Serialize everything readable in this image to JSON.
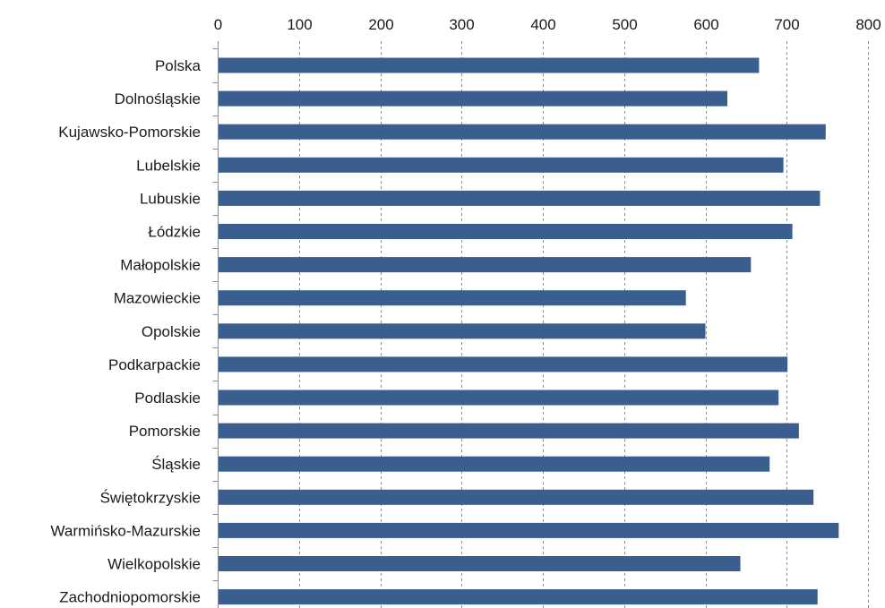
{
  "chart_data": {
    "type": "bar",
    "orientation": "horizontal",
    "x_axis_position": "top",
    "title": "",
    "xlabel": "",
    "ylabel": "",
    "xlim": [
      0,
      800
    ],
    "x_ticks": [
      0,
      100,
      200,
      300,
      400,
      500,
      600,
      700,
      800
    ],
    "grid": true,
    "legend": "none",
    "bar_color": "#3a5f8f",
    "categories": [
      "Polska",
      "Dolnośląskie",
      "Kujawsko-Pomorskie",
      "Lubelskie",
      "Lubuskie",
      "Łódzkie",
      "Małopolskie",
      "Mazowieckie",
      "Opolskie",
      "Podkarpackie",
      "Podlaskie",
      "Pomorskie",
      "Śląskie",
      "Świętokrzyskie",
      "Warmińsko-Mazurskie",
      "Wielkopolskie",
      "Zachodniopomorskie"
    ],
    "values": [
      666,
      627,
      748,
      696,
      741,
      707,
      656,
      576,
      600,
      701,
      690,
      715,
      679,
      733,
      764,
      643,
      738
    ]
  }
}
